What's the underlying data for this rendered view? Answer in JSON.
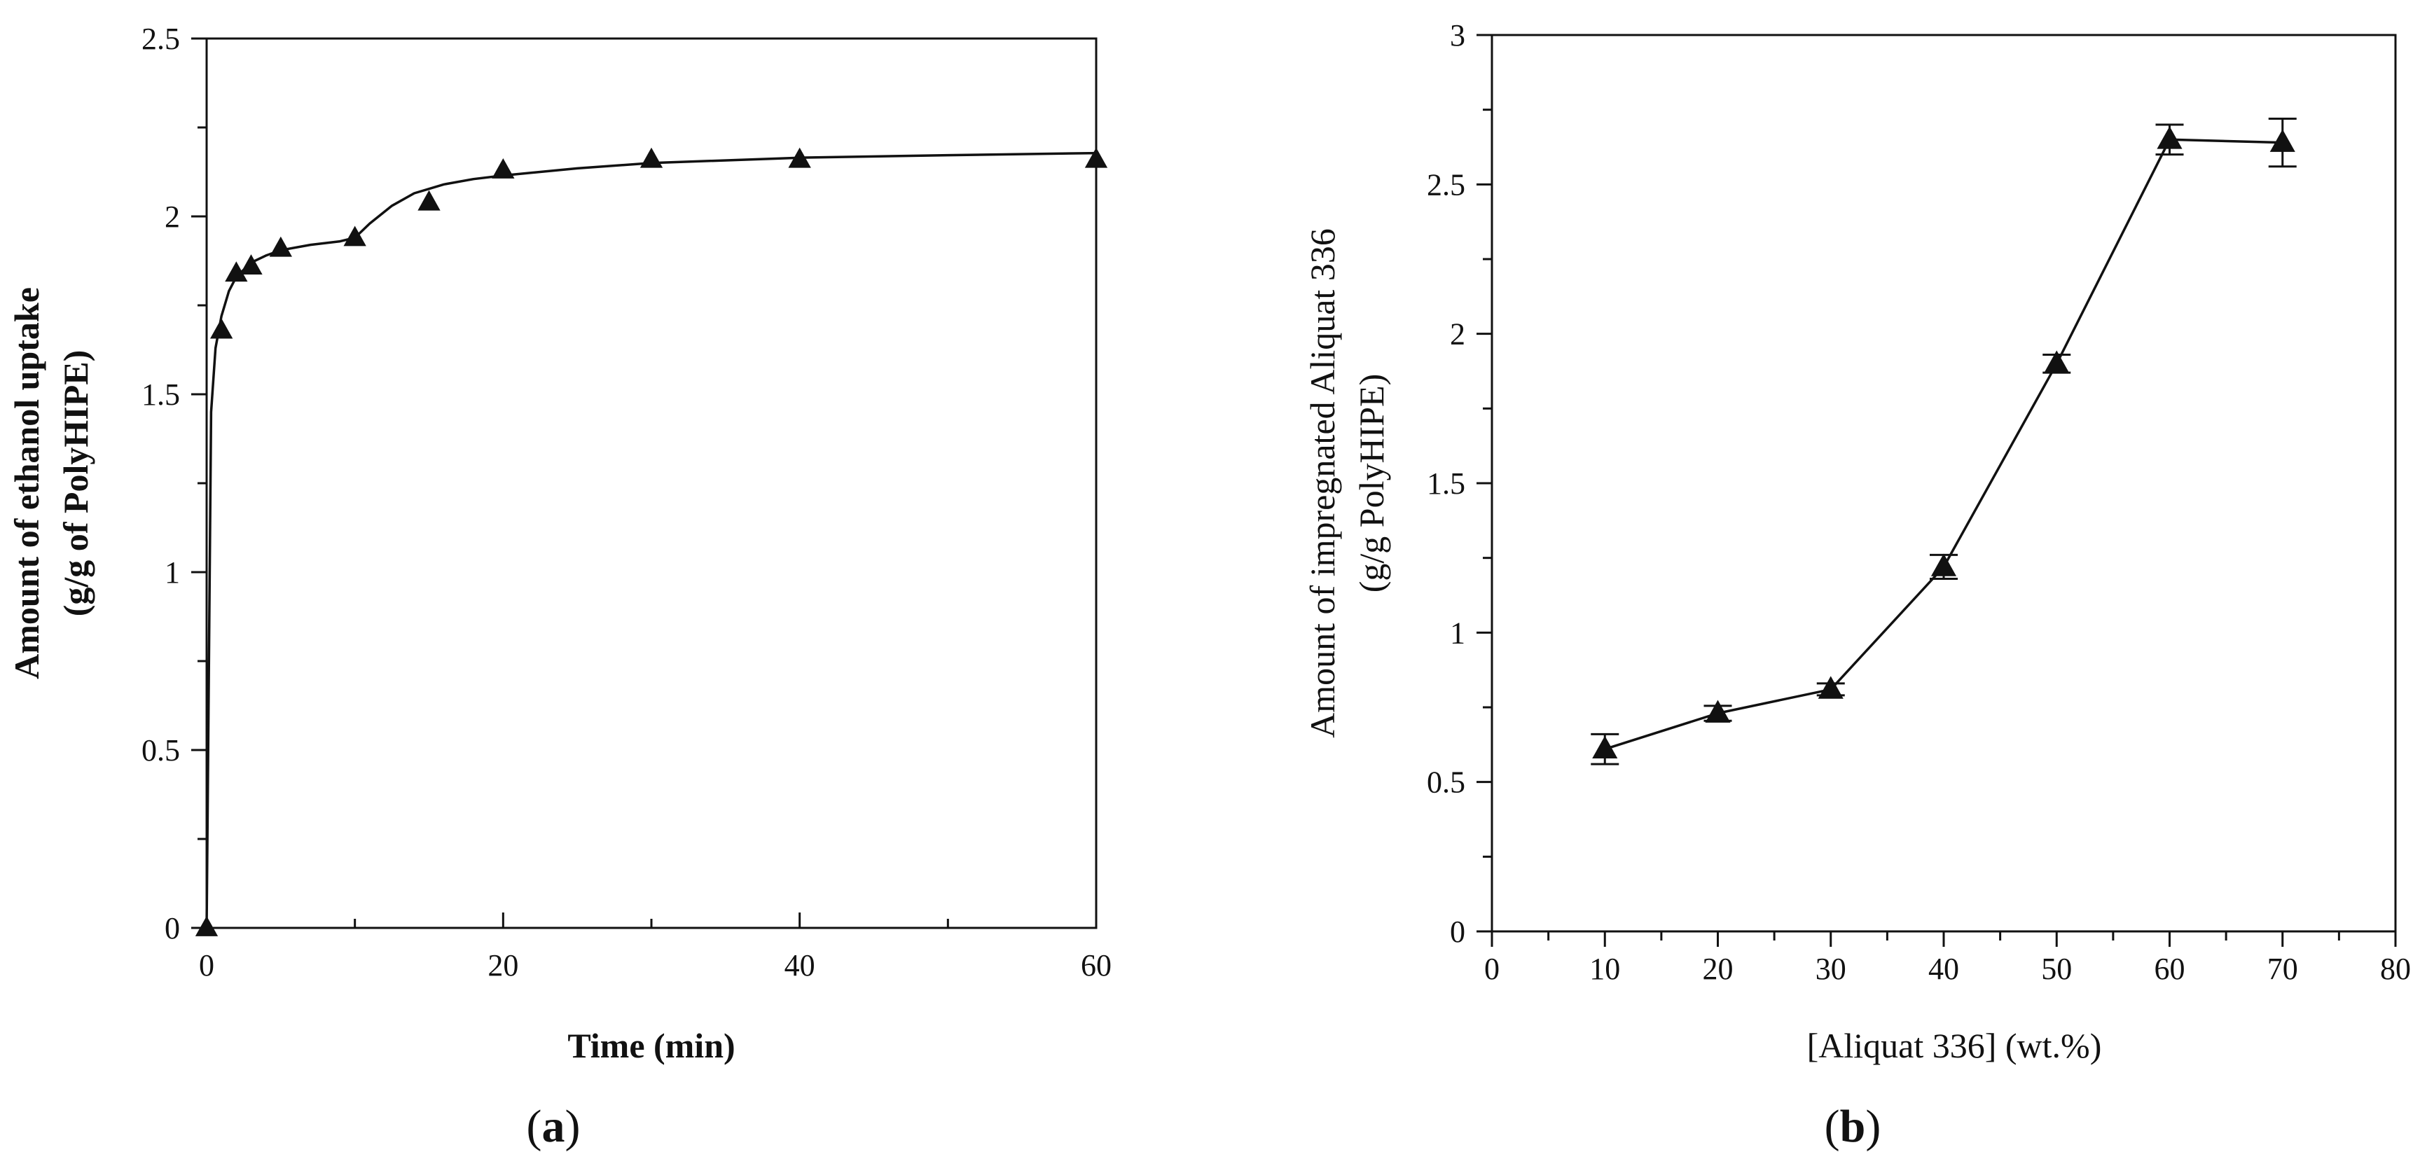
{
  "colors": {
    "ink": "#111111",
    "background": "#ffffff"
  },
  "chart_data": [
    {
      "type": "scatter",
      "panel_label": "(a)",
      "panel_letter": "a",
      "title": "",
      "xlabel": "Time (min)",
      "ylabel_line1": "Amount of ethanol uptake",
      "ylabel_line2": "(g/g of PolyHIPE)",
      "xlim": [
        0,
        60
      ],
      "ylim": [
        0,
        2.5
      ],
      "x_ticks": [
        0,
        20,
        40,
        60
      ],
      "x_tick_labels": [
        "0",
        "20",
        "40",
        "60"
      ],
      "x_minor_ticks": [
        10,
        30,
        50
      ],
      "y_ticks": [
        0,
        0.5,
        1,
        1.5,
        2,
        2.5
      ],
      "y_tick_labels": [
        "0",
        "0.5",
        "1",
        "1.5",
        "2",
        "2.5"
      ],
      "y_minor_ticks": [
        0.25,
        0.75,
        1.25,
        1.75,
        2.25
      ],
      "marker": "triangle",
      "series": [
        {
          "name": "measured",
          "x": [
            0,
            1,
            2,
            3,
            5,
            10,
            15,
            20,
            30,
            40,
            60
          ],
          "y": [
            0,
            1.68,
            1.84,
            1.86,
            1.91,
            1.94,
            2.04,
            2.13,
            2.16,
            2.16,
            2.16
          ]
        },
        {
          "name": "fitted curve",
          "style": "line",
          "x": [
            0,
            0.3,
            0.6,
            1,
            1.5,
            2,
            3,
            4,
            5,
            7,
            9,
            10,
            11,
            12.5,
            14,
            16,
            18,
            20,
            25,
            30,
            40,
            50,
            60
          ],
          "y": [
            0,
            1.45,
            1.63,
            1.72,
            1.79,
            1.83,
            1.87,
            1.89,
            1.905,
            1.92,
            1.93,
            1.94,
            1.98,
            2.03,
            2.065,
            2.09,
            2.105,
            2.115,
            2.135,
            2.15,
            2.165,
            2.172,
            2.178
          ]
        }
      ]
    },
    {
      "type": "line",
      "panel_label": "(b)",
      "panel_letter": "b",
      "title": "",
      "xlabel": "[Aliquat 336] (wt.%)",
      "ylabel_line1": "Amount of impregnated Aliquat 336",
      "ylabel_line2": "(g/g PolyHIPE)",
      "xlim": [
        0,
        80
      ],
      "ylim": [
        0,
        3
      ],
      "x_ticks": [
        0,
        10,
        20,
        30,
        40,
        50,
        60,
        70,
        80
      ],
      "x_tick_labels": [
        "0",
        "10",
        "20",
        "30",
        "40",
        "50",
        "60",
        "70",
        "80"
      ],
      "x_minor_ticks": [
        5,
        15,
        25,
        35,
        45,
        55,
        65,
        75
      ],
      "y_ticks": [
        0,
        0.5,
        1,
        1.5,
        2,
        2.5,
        3
      ],
      "y_tick_labels": [
        "0",
        "0.5",
        "1",
        "1.5",
        "2",
        "2.5",
        "3"
      ],
      "y_minor_ticks": [
        0.25,
        0.75,
        1.25,
        1.75,
        2.25,
        2.75
      ],
      "marker": "triangle",
      "series": [
        {
          "name": "impregnated Aliquat 336",
          "x": [
            10,
            20,
            30,
            40,
            50,
            60,
            70
          ],
          "y": [
            0.61,
            0.73,
            0.81,
            1.22,
            1.9,
            2.65,
            2.64
          ],
          "error": [
            0.05,
            0.025,
            0.02,
            0.04,
            0.03,
            0.05,
            0.08
          ]
        }
      ]
    }
  ]
}
